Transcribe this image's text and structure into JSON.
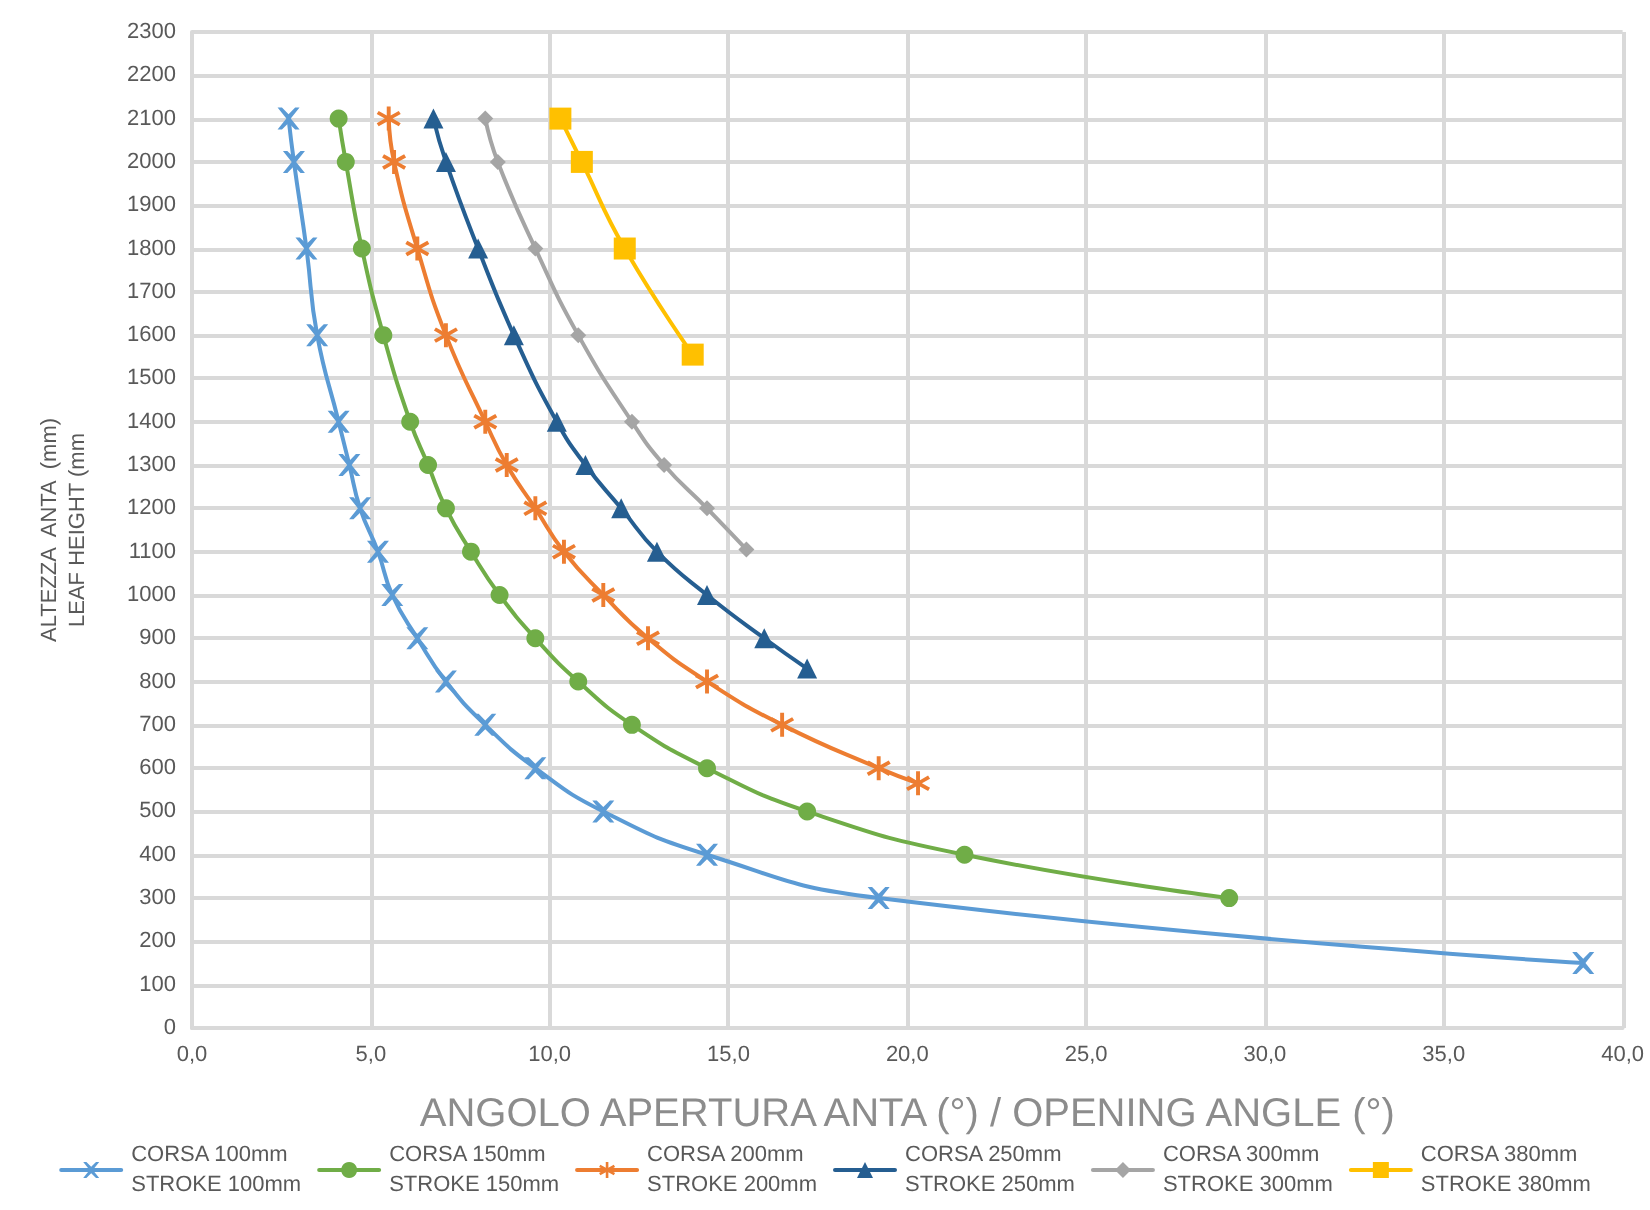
{
  "chart_data": {
    "type": "line",
    "xlabel": "ANGOLO APERTURA ANTA (°) / OPENING ANGLE (°)",
    "ylabel": "ALTEZZA  ANTA  (mm)\nLEAF HEIGHT (mm",
    "xlim": [
      0,
      40
    ],
    "xticks": [
      {
        "value": 0,
        "label": "0,0"
      },
      {
        "value": 5,
        "label": "5,0"
      },
      {
        "value": 10,
        "label": "10,0"
      },
      {
        "value": 15,
        "label": "15,0"
      },
      {
        "value": 20,
        "label": "20,0"
      },
      {
        "value": 25,
        "label": "25,0"
      },
      {
        "value": 30,
        "label": "30,0"
      },
      {
        "value": 35,
        "label": "35,0"
      },
      {
        "value": 40,
        "label": "40,0"
      }
    ],
    "ylim": [
      0,
      2300
    ],
    "yticks": [
      0,
      100,
      200,
      300,
      400,
      500,
      600,
      700,
      800,
      900,
      1000,
      1100,
      1200,
      1300,
      1400,
      1500,
      1600,
      1700,
      1800,
      1900,
      2000,
      2100,
      2200,
      2300
    ],
    "grid": true,
    "legend": "bottom",
    "line_style": "solid",
    "series": [
      {
        "name": "CORSA 100mm\nSTROKE 100mm",
        "color": "#5b9bd5",
        "marker": "cross",
        "x": [
          2.7,
          2.85,
          3.2,
          3.5,
          4.1,
          4.4,
          4.7,
          5.2,
          5.6,
          6.3,
          7.1,
          8.2,
          9.6,
          11.5,
          14.4,
          19.2,
          38.9
        ],
        "values": [
          2100,
          2000,
          1800,
          1600,
          1400,
          1300,
          1200,
          1100,
          1000,
          900,
          800,
          700,
          600,
          500,
          400,
          300,
          150
        ]
      },
      {
        "name": "CORSA 150mm\nSTROKE 150mm",
        "color": "#70ad47",
        "marker": "circle",
        "x": [
          4.1,
          4.3,
          4.75,
          5.35,
          6.1,
          6.6,
          7.1,
          7.8,
          8.6,
          9.6,
          10.8,
          12.3,
          14.4,
          17.2,
          21.6,
          29.0
        ],
        "values": [
          2100,
          2000,
          1800,
          1600,
          1400,
          1300,
          1200,
          1100,
          1000,
          900,
          800,
          700,
          600,
          500,
          400,
          300
        ]
      },
      {
        "name": "CORSA 200mm\nSTROKE 200mm",
        "color": "#ed7d31",
        "marker": "star",
        "x": [
          5.5,
          5.65,
          6.3,
          7.1,
          8.2,
          8.8,
          9.6,
          10.4,
          11.5,
          12.75,
          14.4,
          16.5,
          19.2,
          20.3
        ],
        "values": [
          2100,
          2000,
          1800,
          1600,
          1400,
          1300,
          1200,
          1100,
          1000,
          900,
          800,
          700,
          600,
          565
        ]
      },
      {
        "name": "CORSA 250mm\nSTROKE 250mm",
        "color": "#255e91",
        "marker": "triangle",
        "x": [
          6.75,
          7.1,
          8.0,
          9.0,
          10.2,
          11.0,
          12.0,
          13.0,
          14.4,
          16.0,
          17.2
        ],
        "values": [
          2100,
          2000,
          1800,
          1600,
          1400,
          1300,
          1200,
          1100,
          1000,
          900,
          830
        ]
      },
      {
        "name": "CORSA 300mm\nSTROKE 300mm",
        "color": "#a5a5a5",
        "marker": "diamond",
        "x": [
          8.2,
          8.55,
          9.6,
          10.8,
          12.3,
          13.2,
          14.4,
          15.5
        ],
        "values": [
          2100,
          2000,
          1800,
          1600,
          1400,
          1300,
          1200,
          1105
        ]
      },
      {
        "name": "CORSA 380mm\nSTROKE 380mm",
        "color": "#ffc000",
        "marker": "square",
        "x": [
          10.3,
          10.9,
          12.1,
          14.0
        ],
        "values": [
          2100,
          2000,
          1800,
          1555
        ]
      }
    ]
  }
}
